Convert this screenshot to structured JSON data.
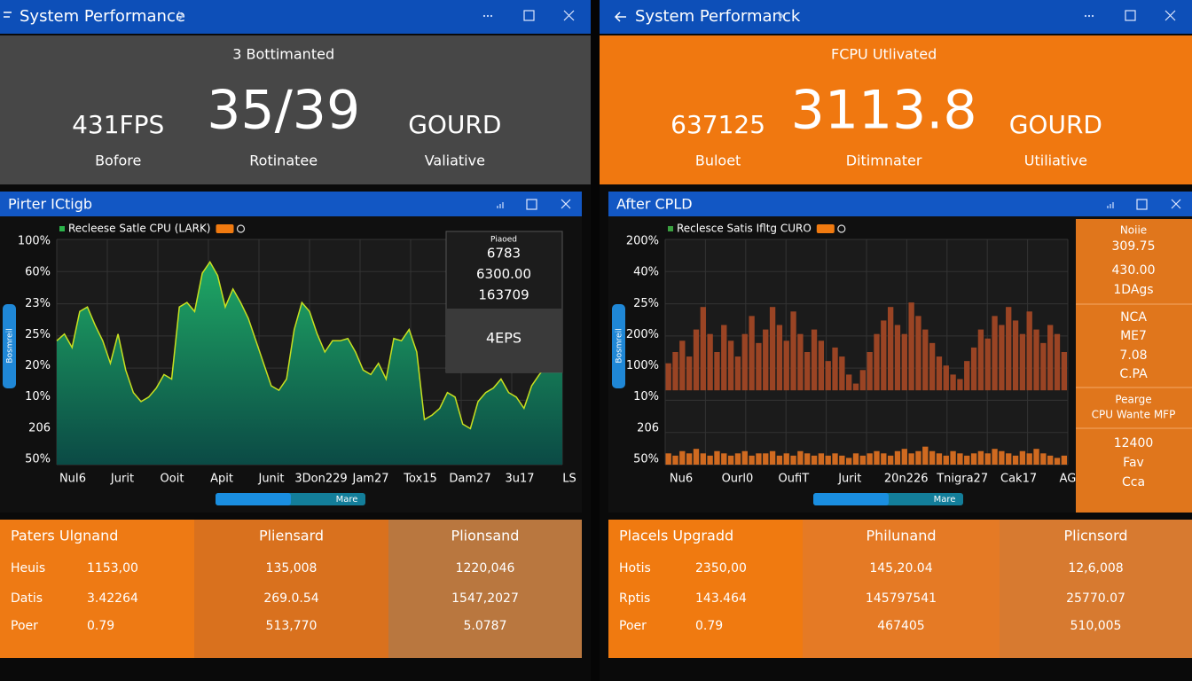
{
  "windows": [
    {
      "title": "System Performance",
      "header": "3 Bottimanted",
      "stats": [
        {
          "value": "431FPS",
          "label": "Bofore"
        },
        {
          "value": "35/39",
          "label": "Rotinatee"
        },
        {
          "value": "GOURD",
          "label": "Valiative"
        }
      ],
      "chart_window": {
        "title": "Pirter ICtigb",
        "side_tab": "Bosmreil",
        "chart_data": {
          "type": "area",
          "legend": "Recleese Satle CPU (LARK)",
          "y_labels": [
            "100%",
            "60%",
            "23%",
            "25%",
            "20%",
            "10%",
            "206",
            "50%"
          ],
          "x_labels": [
            "NuI6",
            "Jurit",
            "Ooit",
            "Apit",
            "Junit",
            "3Don229",
            "Jam27",
            "Tox15",
            "Dam27",
            "3u17",
            "LS"
          ],
          "ylim": [
            0,
            100
          ],
          "color": "#1fa865",
          "values": [
            55,
            58,
            52,
            68,
            70,
            62,
            55,
            45,
            58,
            42,
            32,
            28,
            30,
            34,
            40,
            38,
            70,
            72,
            68,
            85,
            90,
            84,
            70,
            78,
            72,
            65,
            55,
            45,
            35,
            33,
            38,
            60,
            72,
            68,
            58,
            50,
            55,
            55,
            56,
            50,
            42,
            40,
            45,
            38,
            56,
            55,
            60,
            50,
            20,
            22,
            25,
            32,
            30,
            18,
            16,
            28,
            32,
            34,
            38,
            32,
            30,
            25,
            35,
            40,
            44,
            45,
            48
          ]
        },
        "overlay": {
          "caption": "Piaoed",
          "lines": [
            "6783",
            "6300.00",
            "163709"
          ],
          "footer": "4EPS"
        },
        "scroll_label": "Mare"
      },
      "table": {
        "header": [
          "Paters Ulgnand",
          "Pliensard",
          "Plionsand"
        ],
        "rows": [
          [
            "Heuis",
            "1153,00",
            "135,008",
            "1220,046"
          ],
          [
            "Datis",
            "3.42264",
            "269.0.54",
            "1547,2027"
          ],
          [
            "Poer",
            "0.79",
            "513,770",
            "5.0787"
          ]
        ]
      }
    },
    {
      "title": "System Performanck",
      "header": "FCPU Utlivated",
      "stats": [
        {
          "value": "637125",
          "label": "Buloet"
        },
        {
          "value": "3113.8",
          "label": "Ditimnater"
        },
        {
          "value": "GOURD",
          "label": "Utiliative"
        }
      ],
      "chart_window": {
        "title": "After CPLD",
        "side_tab": "Bosmreil",
        "chart_data": {
          "type": "bars",
          "legend": "Reclesce Satis Ifltg CURO",
          "y_labels": [
            "200%",
            "40%",
            "25%",
            "200%",
            "100%",
            "10%",
            "206",
            "50%"
          ],
          "x_labels": [
            "Nu6",
            "Ourl0",
            "OufiT",
            "Jurit",
            "20n226",
            "Tnigra27",
            "Cak17",
            "AGET"
          ],
          "ylim": [
            0,
            100
          ],
          "series": [
            {
              "color": "#9a4424",
              "values": [
                45,
                50,
                55,
                48,
                60,
                70,
                58,
                50,
                62,
                55,
                48,
                58,
                66,
                54,
                60,
                70,
                62,
                55,
                68,
                58,
                50,
                60,
                55,
                46,
                52,
                48,
                40,
                36,
                42,
                50,
                58,
                64,
                70,
                62,
                58,
                72,
                66,
                60,
                54,
                48,
                44,
                40,
                38,
                46,
                52,
                60,
                56,
                66,
                62,
                70,
                64,
                58,
                68,
                60,
                54,
                62,
                58,
                50
              ]
            },
            {
              "color": "#d06a20",
              "values": [
                5,
                4,
                6,
                5,
                7,
                5,
                4,
                6,
                5,
                4,
                5,
                6,
                4,
                5,
                5,
                6,
                4,
                5,
                4,
                6,
                5,
                4,
                5,
                4,
                5,
                4,
                3,
                5,
                4,
                5,
                6,
                5,
                4,
                6,
                7,
                5,
                6,
                8,
                6,
                5,
                4,
                6,
                5,
                4,
                5,
                6,
                5,
                7,
                6,
                5,
                4,
                6,
                5,
                7,
                5,
                4,
                3,
                4
              ]
            }
          ]
        },
        "side_panel": [
          [
            "Noiie",
            "309.75",
            "430.00",
            "1DAgs"
          ],
          [
            "NCA",
            "ME7",
            "7.08",
            "C.PA"
          ],
          [
            "Pearge",
            "CPU Wante MFP"
          ],
          [
            "12400",
            "Fav",
            "Cca"
          ]
        ],
        "scroll_label": "Mare"
      },
      "table": {
        "header": [
          "Placels Upgradd",
          "Philunand",
          "Plicnsord"
        ],
        "rows": [
          [
            "Hotis",
            "2350,00",
            "145,20.04",
            "12,6,008"
          ],
          [
            "Rptis",
            "143.464",
            "145797541",
            "25770.07"
          ],
          [
            "Poer",
            "0.79",
            "467405",
            "510,005"
          ]
        ]
      }
    }
  ]
}
